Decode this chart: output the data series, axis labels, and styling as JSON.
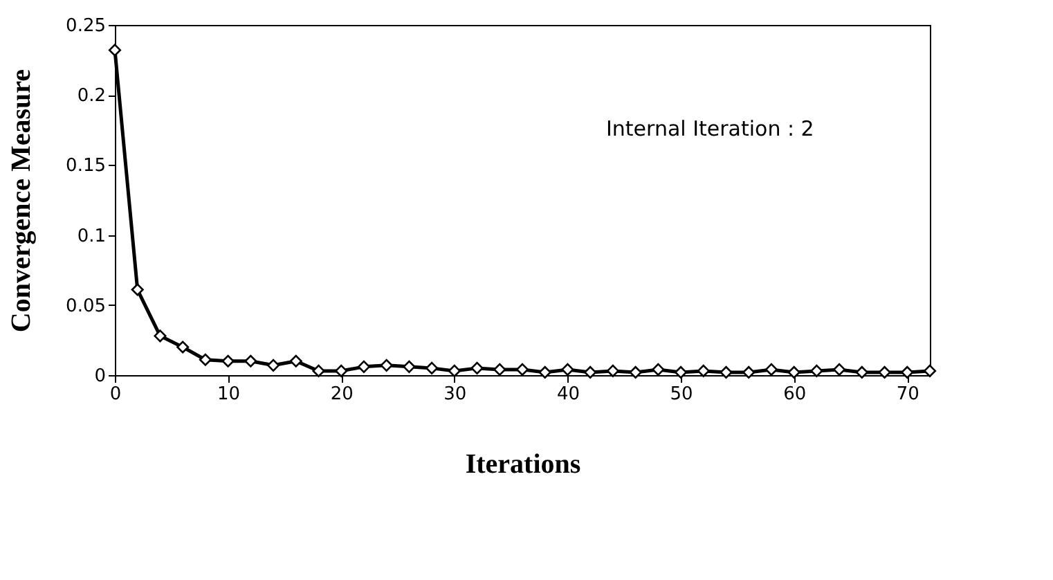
{
  "chart_data": {
    "type": "line",
    "xlabel": "Iterations",
    "ylabel": "Convergence Measure",
    "annotations": [
      "Internal Iteration : 2"
    ],
    "x": [
      0,
      2,
      4,
      6,
      8,
      10,
      12,
      14,
      16,
      18,
      20,
      22,
      24,
      26,
      28,
      30,
      32,
      34,
      36,
      38,
      40,
      42,
      44,
      46,
      48,
      50,
      52,
      54,
      56,
      58,
      60,
      62,
      64,
      66,
      68,
      70,
      72
    ],
    "series": [
      {
        "color": "#000000",
        "values": [
          0.232,
          0.061,
          0.028,
          0.02,
          0.011,
          0.01,
          0.01,
          0.007,
          0.01,
          0.003,
          0.003,
          0.006,
          0.007,
          0.006,
          0.005,
          0.003,
          0.005,
          0.004,
          0.004,
          0.002,
          0.004,
          0.002,
          0.003,
          0.002,
          0.004,
          0.002,
          0.003,
          0.002,
          0.002,
          0.004,
          0.002,
          0.003,
          0.004,
          0.002,
          0.002,
          0.002,
          0.003
        ]
      }
    ],
    "xlim": [
      0,
      72
    ],
    "xticks": [
      0,
      10,
      20,
      30,
      40,
      50,
      60,
      70
    ],
    "ylim": [
      0,
      0.25
    ],
    "yticks": [
      0,
      0.05,
      0.1,
      0.15,
      0.2,
      0.25
    ],
    "marker": "diamond",
    "line_style": "solid",
    "grid": false,
    "legend": false
  }
}
